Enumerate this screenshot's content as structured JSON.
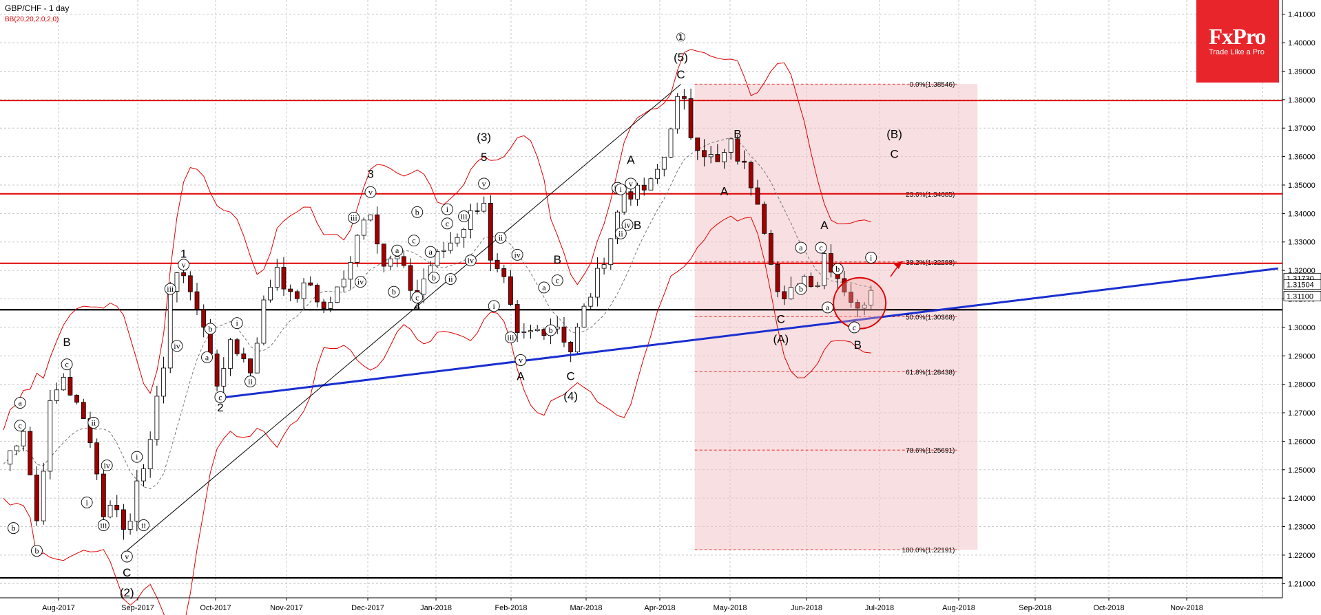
{
  "header": {
    "title": "GBP/CHF - 1 day",
    "indicator": "BB(20,20,2.0,2,0)"
  },
  "logo": {
    "brand": "FxPro",
    "tagline": "Trade Like a Pro"
  },
  "chart_data": {
    "type": "candlestick",
    "symbol": "GBP/CHF",
    "timeframe": "1 day",
    "ylim": [
      1.205,
      1.415
    ],
    "y_ticks": [
      1.21,
      1.22,
      1.23,
      1.24,
      1.25,
      1.26,
      1.27,
      1.28,
      1.29,
      1.3,
      1.31,
      1.32,
      1.33,
      1.34,
      1.35,
      1.36,
      1.37,
      1.38,
      1.39,
      1.4,
      1.41
    ],
    "y_tick_labels": [
      "1.21000",
      "1.22000",
      "1.23000",
      "1.24000",
      "1.25000",
      "1.26000",
      "1.27000",
      "1.28000",
      "1.29000",
      "1.30000",
      "1.31000",
      "1.32000",
      "1.33000",
      "1.34000",
      "1.35000",
      "1.36000",
      "1.37000",
      "1.38000",
      "1.39000",
      "1.40000",
      "1.41000"
    ],
    "x_labels": [
      "Aug-2017",
      "Sep-2017",
      "Oct-2017",
      "Nov-2017",
      "Dec-2017",
      "Jan-2018",
      "Feb-2018",
      "Mar-2018",
      "Apr-2018",
      "May-2018",
      "Jun-2018",
      "Jul-2018",
      "Aug-2018",
      "Sep-2018",
      "Oct-2018",
      "Nov-2018"
    ],
    "price_badges": [
      {
        "label": "1.31730",
        "value": 1.3173
      },
      {
        "label": "1.31504",
        "value": 1.31504
      },
      {
        "label": "1.31100",
        "value": 1.311
      }
    ],
    "horizontal_levels": [
      {
        "value": 1.3797,
        "color": "#e00000"
      },
      {
        "value": 1.3469,
        "color": "#e00000"
      },
      {
        "value": 1.3225,
        "color": "#e00000"
      },
      {
        "value": 1.3062,
        "color": "#000000"
      },
      {
        "value": 1.212,
        "color": "#000000"
      }
    ],
    "fibonacci": [
      {
        "label": "0.0%(1.38546)",
        "value": 1.38546
      },
      {
        "label": "23.6%(1.34685)",
        "value": 1.34685
      },
      {
        "label": "38.2%(1.32298)",
        "value": 1.32298
      },
      {
        "label": "50.0%(1.30368)",
        "value": 1.30368
      },
      {
        "label": "61.8%(1.28438)",
        "value": 1.28438
      },
      {
        "label": "78.6%(1.25691)",
        "value": 1.25691
      },
      {
        "label": "100.0%(1.22191)",
        "value": 1.22191
      }
    ],
    "fib_zone": {
      "x_start": 101.0,
      "x_end": 141.0,
      "top": 1.38546,
      "bottom": 1.22191
    },
    "trendline_blue": {
      "x1": 31.5,
      "y1": 1.2751,
      "x2": 191.5,
      "y2": 1.3207
    },
    "trendline_black": {
      "x1": 18.5,
      "y1": 1.2216,
      "x2": 101.5,
      "y2": 1.3854
    },
    "highlight_circle": {
      "x": 128.5,
      "y": 1.3085
    },
    "waves": [
      {
        "t": "①",
        "x": 101.5,
        "y": 1.4005,
        "style": "big"
      },
      {
        "t": "(5)",
        "x": 101.5,
        "y": 1.3935,
        "style": "big"
      },
      {
        "t": "C",
        "x": 101.5,
        "y": 1.3875,
        "style": "big"
      },
      {
        "t": "1",
        "x": 27,
        "y": 1.3245,
        "style": "big"
      },
      {
        "t": "2",
        "x": 32.5,
        "y": 1.2705,
        "style": "big"
      },
      {
        "t": "3",
        "x": 55,
        "y": 1.3525,
        "style": "big"
      },
      {
        "t": "4",
        "x": 62,
        "y": 1.306,
        "style": "big"
      },
      {
        "t": "(3)",
        "x": 72,
        "y": 1.3655,
        "style": "big"
      },
      {
        "t": "5",
        "x": 72,
        "y": 1.3585,
        "style": "big"
      },
      {
        "t": "B",
        "x": 83,
        "y": 1.3225,
        "style": "big"
      },
      {
        "t": "A",
        "x": 77.5,
        "y": 1.2815,
        "style": "big"
      },
      {
        "t": "C",
        "x": 85,
        "y": 1.2815,
        "style": "big"
      },
      {
        "t": "(4)",
        "x": 85,
        "y": 1.2745,
        "style": "big"
      },
      {
        "t": "A",
        "x": 94,
        "y": 1.3575,
        "style": "big"
      },
      {
        "t": "B",
        "x": 95,
        "y": 1.3345,
        "style": "big"
      },
      {
        "t": "B",
        "x": 110,
        "y": 1.3665,
        "style": "big"
      },
      {
        "t": "A",
        "x": 108,
        "y": 1.3465,
        "style": "big"
      },
      {
        "t": "C",
        "x": 116.5,
        "y": 1.3015,
        "style": "big"
      },
      {
        "t": "(A)",
        "x": 116.5,
        "y": 1.2945,
        "style": "big"
      },
      {
        "t": "A",
        "x": 123,
        "y": 1.3345,
        "style": "big"
      },
      {
        "t": "B",
        "x": 128,
        "y": 1.2925,
        "style": "big"
      },
      {
        "t": "(B)",
        "x": 133.5,
        "y": 1.3665,
        "style": "big"
      },
      {
        "t": "C",
        "x": 133.5,
        "y": 1.3595,
        "style": "big"
      },
      {
        "t": "B",
        "x": 9.5,
        "y": 1.2935,
        "style": "big"
      },
      {
        "t": "C",
        "x": 18.5,
        "y": 1.2125,
        "style": "big"
      },
      {
        "t": "(2)",
        "x": 18.5,
        "y": 1.2055,
        "style": "big"
      }
    ],
    "circled_labels": [
      {
        "t": "a",
        "x": 2.5,
        "y": 1.2735
      },
      {
        "t": "c",
        "x": 2.5,
        "y": 1.2655
      },
      {
        "t": "b",
        "x": 1.5,
        "y": 1.2295
      },
      {
        "t": "b",
        "x": 5,
        "y": 1.2215
      },
      {
        "t": "c",
        "x": 9.5,
        "y": 1.287
      },
      {
        "t": "ii",
        "x": 13.5,
        "y": 1.2665
      },
      {
        "t": "iv",
        "x": 15.5,
        "y": 1.2515
      },
      {
        "t": "i",
        "x": 12.5,
        "y": 1.2385
      },
      {
        "t": "iii",
        "x": 15,
        "y": 1.2305
      },
      {
        "t": "i",
        "x": 20,
        "y": 1.2545
      },
      {
        "t": "ii",
        "x": 21,
        "y": 1.2305
      },
      {
        "t": "v",
        "x": 18.5,
        "y": 1.2195
      },
      {
        "t": "iii",
        "x": 25,
        "y": 1.3135
      },
      {
        "t": "iv",
        "x": 26,
        "y": 1.2935
      },
      {
        "t": "v",
        "x": 27,
        "y": 1.322
      },
      {
        "t": "b",
        "x": 31,
        "y": 1.2995
      },
      {
        "t": "a",
        "x": 30.5,
        "y": 1.2895
      },
      {
        "t": "i",
        "x": 35,
        "y": 1.3015
      },
      {
        "t": "ii",
        "x": 37,
        "y": 1.281
      },
      {
        "t": "c",
        "x": 32.5,
        "y": 1.2755
      },
      {
        "t": "iii",
        "x": 52.5,
        "y": 1.3385
      },
      {
        "t": "iv",
        "x": 53.5,
        "y": 1.316
      },
      {
        "t": "v",
        "x": 55,
        "y": 1.3475
      },
      {
        "t": "a",
        "x": 59,
        "y": 1.327
      },
      {
        "t": "b",
        "x": 62,
        "y": 1.3405
      },
      {
        "t": "c",
        "x": 61.5,
        "y": 1.3305
      },
      {
        "t": "b",
        "x": 58.5,
        "y": 1.3125
      },
      {
        "t": "c",
        "x": 62,
        "y": 1.3105
      },
      {
        "t": "i",
        "x": 66.5,
        "y": 1.3415
      },
      {
        "t": "c",
        "x": 66.5,
        "y": 1.3365
      },
      {
        "t": "a",
        "x": 64,
        "y": 1.3265
      },
      {
        "t": "b",
        "x": 64.5,
        "y": 1.3175
      },
      {
        "t": "ii",
        "x": 67,
        "y": 1.317
      },
      {
        "t": "iii",
        "x": 69,
        "y": 1.339
      },
      {
        "t": "iv",
        "x": 70,
        "y": 1.3235
      },
      {
        "t": "v",
        "x": 72,
        "y": 1.3505
      },
      {
        "t": "ii",
        "x": 74.5,
        "y": 1.3315
      },
      {
        "t": "i",
        "x": 73.5,
        "y": 1.3075
      },
      {
        "t": "iv",
        "x": 77,
        "y": 1.3255
      },
      {
        "t": "iii",
        "x": 76,
        "y": 1.2965
      },
      {
        "t": "v",
        "x": 77.5,
        "y": 1.2885
      },
      {
        "t": "a",
        "x": 81,
        "y": 1.314
      },
      {
        "t": "b",
        "x": 82,
        "y": 1.299
      },
      {
        "t": "c",
        "x": 83,
        "y": 1.3165
      },
      {
        "t": "iii",
        "x": 92,
        "y": 1.349
      },
      {
        "t": "v",
        "x": 94,
        "y": 1.3505
      },
      {
        "t": "i",
        "x": 92.5,
        "y": 1.3485
      },
      {
        "t": "iv",
        "x": 93.5,
        "y": 1.336
      },
      {
        "t": "ii",
        "x": 92.5,
        "y": 1.333
      },
      {
        "t": "a",
        "x": 119.5,
        "y": 1.328
      },
      {
        "t": "b",
        "x": 119.5,
        "y": 1.3135
      },
      {
        "t": "c",
        "x": 122.5,
        "y": 1.328
      },
      {
        "t": "b",
        "x": 125,
        "y": 1.3205
      },
      {
        "t": "a",
        "x": 123.5,
        "y": 1.307
      },
      {
        "t": "c",
        "x": 127.5,
        "y": 1.3
      },
      {
        "t": "i",
        "x": 130,
        "y": 1.3245
      }
    ]
  }
}
